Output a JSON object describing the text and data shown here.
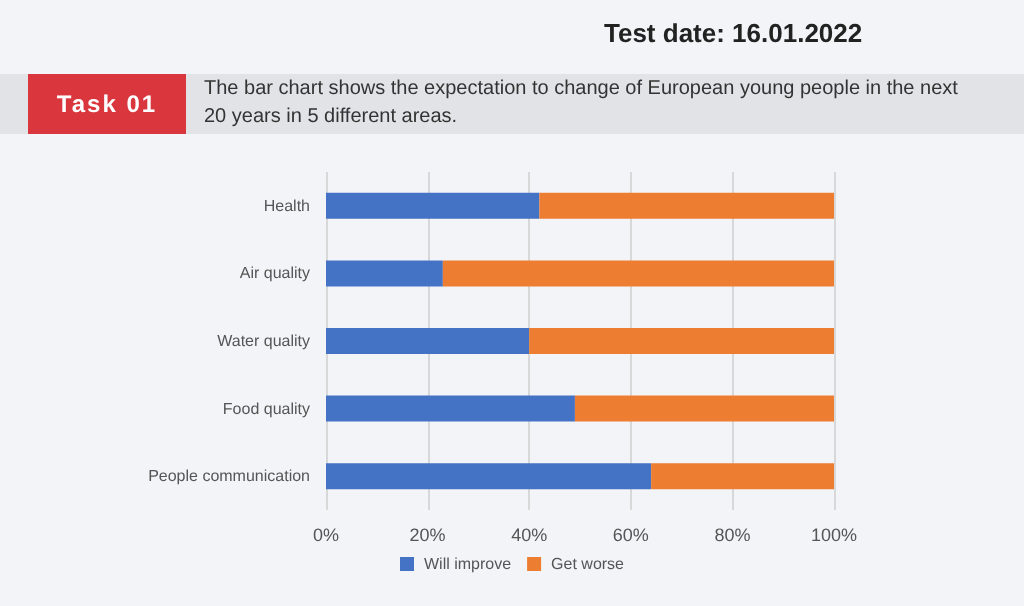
{
  "chart_data": {
    "type": "bar",
    "title": "The bar chart shows the expectation to change of European young people in the next 20 years in 5 different areas.",
    "annotations": [
      "Test date: 16.01.2022",
      "Task 01"
    ],
    "orientation": "horizontal",
    "stacked": true,
    "categories": [
      "Health",
      "Air quality",
      "Water quality",
      "Food quality",
      "People communication"
    ],
    "series": [
      {
        "name": "Will improve",
        "color": "#4472c4",
        "values": [
          42,
          23,
          40,
          49,
          64
        ]
      },
      {
        "name": "Get worse",
        "color": "#ed7d31",
        "values": [
          58,
          77,
          60,
          51,
          36
        ]
      }
    ],
    "xlim": [
      0,
      100
    ],
    "xticks": [
      {
        "value": 0,
        "label": "0%"
      },
      {
        "value": 20,
        "label": "20%"
      },
      {
        "value": 40,
        "label": "40%"
      },
      {
        "value": 60,
        "label": "60%"
      },
      {
        "value": 80,
        "label": "80%"
      },
      {
        "value": 100,
        "label": "100%"
      }
    ],
    "grid": "x",
    "legend": "bottom"
  }
}
